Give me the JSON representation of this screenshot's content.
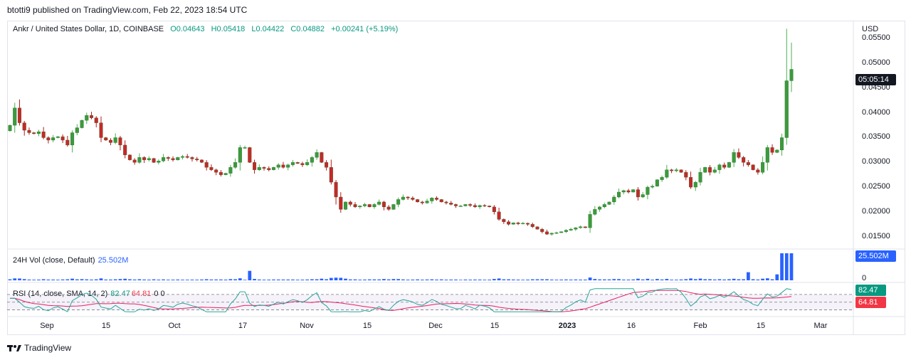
{
  "header": {
    "published": "btotti9 published on TradingView.com, Feb 22, 2023 18:54 UTC"
  },
  "legend": {
    "symbol": "Ankr / United States Dollar, 1D, COINBASE",
    "open": "O0.04643",
    "high": "H0.05418",
    "low": "L0.04422",
    "close": "C0.04882",
    "change": "+0.00241 (+5.19%)"
  },
  "volume_pane": {
    "label": "24H Vol (close, Default)",
    "value": "25.502M",
    "axis_zero": "0"
  },
  "rsi_pane": {
    "label": "RSI (14, close, SMA, 14, 2)",
    "rsi": "82.47",
    "sma": "64.81",
    "extra": "0  0"
  },
  "price_axis": {
    "unit": "USD",
    "ticks": [
      "0.05500",
      "0.05000",
      "0.04500",
      "0.04000",
      "0.03500",
      "0.03000",
      "0.02500",
      "0.02000",
      "0.01500"
    ],
    "countdown": "05:05:14"
  },
  "colors": {
    "up": "#26a69a",
    "up_fill": "#3c9a3c",
    "down": "#c62828",
    "volume": "#2962ff",
    "rsi": "#26a69a",
    "rsi_sma": "#e91e63",
    "rsi_band": "#7e57c2"
  },
  "chart_data": {
    "type": "candlestick",
    "x_ticks": [
      "Sep",
      "15",
      "Oct",
      "17",
      "Nov",
      "15",
      "Dec",
      "15",
      "2023",
      "16",
      "Feb",
      "15",
      "Mar"
    ],
    "ylim": [
      0.0125,
      0.0585
    ],
    "close_series": [
      0.0375,
      0.041,
      0.038,
      0.0365,
      0.036,
      0.0358,
      0.0362,
      0.035,
      0.0345,
      0.035,
      0.0352,
      0.0345,
      0.0335,
      0.036,
      0.037,
      0.0385,
      0.0395,
      0.039,
      0.038,
      0.035,
      0.0345,
      0.034,
      0.035,
      0.0335,
      0.0315,
      0.0305,
      0.03,
      0.031,
      0.0305,
      0.0308,
      0.03,
      0.0303,
      0.031,
      0.0308,
      0.0305,
      0.031,
      0.0312,
      0.031,
      0.0307,
      0.0305,
      0.03,
      0.029,
      0.0285,
      0.028,
      0.0275,
      0.0278,
      0.029,
      0.03,
      0.033,
      0.033,
      0.03,
      0.0285,
      0.029,
      0.0288,
      0.0285,
      0.029,
      0.0295,
      0.029,
      0.0295,
      0.03,
      0.0298,
      0.0295,
      0.03,
      0.031,
      0.032,
      0.03,
      0.029,
      0.026,
      0.023,
      0.0205,
      0.022,
      0.0215,
      0.021,
      0.0212,
      0.0215,
      0.021,
      0.0215,
      0.022,
      0.021,
      0.0205,
      0.0215,
      0.0225,
      0.023,
      0.0228,
      0.0225,
      0.022,
      0.0218,
      0.0222,
      0.0228,
      0.0225,
      0.022,
      0.0218,
      0.0215,
      0.0212,
      0.0212,
      0.0215,
      0.0213,
      0.021,
      0.0213,
      0.0212,
      0.021,
      0.02,
      0.0185,
      0.018,
      0.0175,
      0.0178,
      0.0176,
      0.0177,
      0.0175,
      0.017,
      0.0165,
      0.016,
      0.0155,
      0.0157,
      0.0158,
      0.016,
      0.0163,
      0.0165,
      0.0168,
      0.017,
      0.0168,
      0.0195,
      0.0205,
      0.021,
      0.0215,
      0.022,
      0.023,
      0.024,
      0.0243,
      0.024,
      0.0245,
      0.023,
      0.0235,
      0.025,
      0.0252,
      0.0265,
      0.027,
      0.0285,
      0.0283,
      0.0285,
      0.028,
      0.027,
      0.025,
      0.026,
      0.028,
      0.029,
      0.028,
      0.0285,
      0.0295,
      0.029,
      0.03,
      0.032,
      0.031,
      0.03,
      0.0295,
      0.0285,
      0.028,
      0.03,
      0.033,
      0.032,
      0.0325,
      0.035,
      0.0465,
      0.0488
    ]
  }
}
